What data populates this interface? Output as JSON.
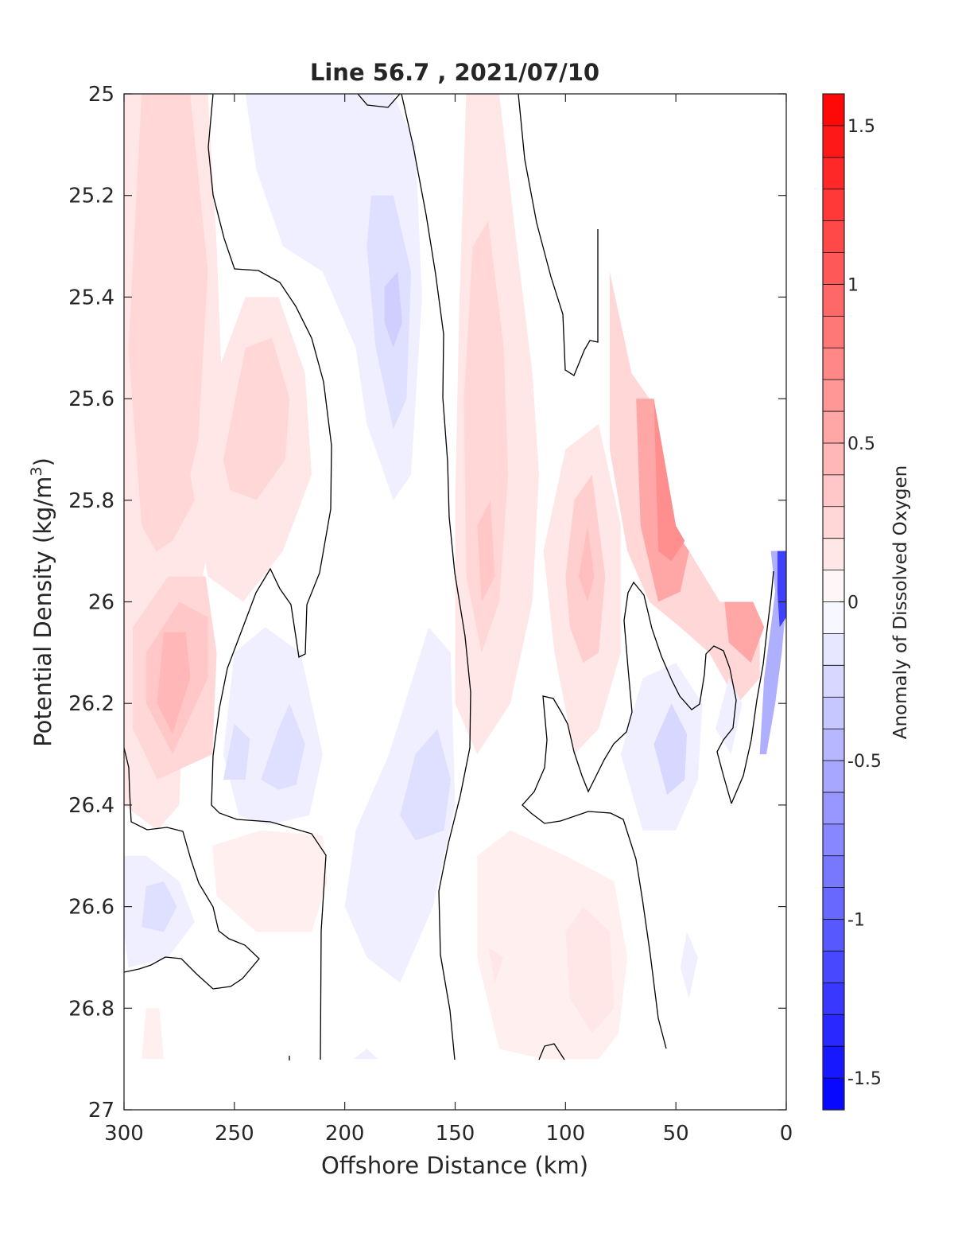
{
  "chart_data": {
    "type": "heatmap",
    "subtype": "filled-contour",
    "title": "Line 56.7 , 2021/07/10",
    "xlabel": "Offshore Distance (km)",
    "ylabel_main": "Potential Density (kg/m",
    "ylabel_sup": "3",
    "ylabel_end": ")",
    "colorbar_label": "Anomaly of Dissolved Oxygen",
    "xlim": [
      300,
      0
    ],
    "x_reversed": true,
    "ylim": [
      25,
      27
    ],
    "y_reversed": true,
    "xticks": [
      300,
      250,
      200,
      150,
      100,
      50,
      0
    ],
    "yticks": [
      "25",
      "25.2",
      "25.4",
      "25.6",
      "25.8",
      "26",
      "26.2",
      "26.4",
      "26.6",
      "26.8",
      "27"
    ],
    "colorbar_range": [
      -1.6,
      1.6
    ],
    "colorbar_ticks": [
      "1.5",
      "1",
      "0.5",
      "0",
      "-0.5",
      "-1",
      "-1.5"
    ],
    "colorbar_tick_values": [
      1.5,
      1,
      0.5,
      0,
      -0.5,
      -1,
      -1.5
    ],
    "contour_step": 0.1,
    "colormap": {
      "negative": "#0000ff",
      "zero": "#ffffff",
      "positive": "#ff0000"
    },
    "contour_line_color": "#000000",
    "grid": false,
    "features": [
      {
        "name": "positive core",
        "x": 280,
        "y": 26.2,
        "value": 0.4
      },
      {
        "name": "positive band",
        "x": 290,
        "y": 25.5,
        "value": 0.25
      },
      {
        "name": "positive lens",
        "x": 240,
        "y": 25.7,
        "value": 0.2
      },
      {
        "name": "negative lens",
        "x": 183,
        "y": 25.4,
        "value": -0.25
      },
      {
        "name": "negative lens",
        "x": 235,
        "y": 26.25,
        "value": -0.2
      },
      {
        "name": "negative lens",
        "x": 165,
        "y": 26.3,
        "value": -0.15
      },
      {
        "name": "negative lens",
        "x": 283,
        "y": 26.6,
        "value": -0.2
      },
      {
        "name": "positive band",
        "x": 130,
        "y": 25.9,
        "value": 0.3
      },
      {
        "name": "positive core",
        "x": 90,
        "y": 26.0,
        "value": 0.3
      },
      {
        "name": "positive near-shore",
        "x": 50,
        "y": 25.85,
        "value": 0.7
      },
      {
        "name": "positive near-shore",
        "x": 15,
        "y": 26.05,
        "value": 0.7
      },
      {
        "name": "negative lens",
        "x": 60,
        "y": 26.3,
        "value": -0.25
      },
      {
        "name": "negative near-shore",
        "x": 5,
        "y": 26.05,
        "value": -1.2
      },
      {
        "name": "positive lens",
        "x": 100,
        "y": 26.7,
        "value": 0.15
      },
      {
        "name": "positive lens",
        "x": 230,
        "y": 26.5,
        "value": 0.1
      }
    ]
  }
}
